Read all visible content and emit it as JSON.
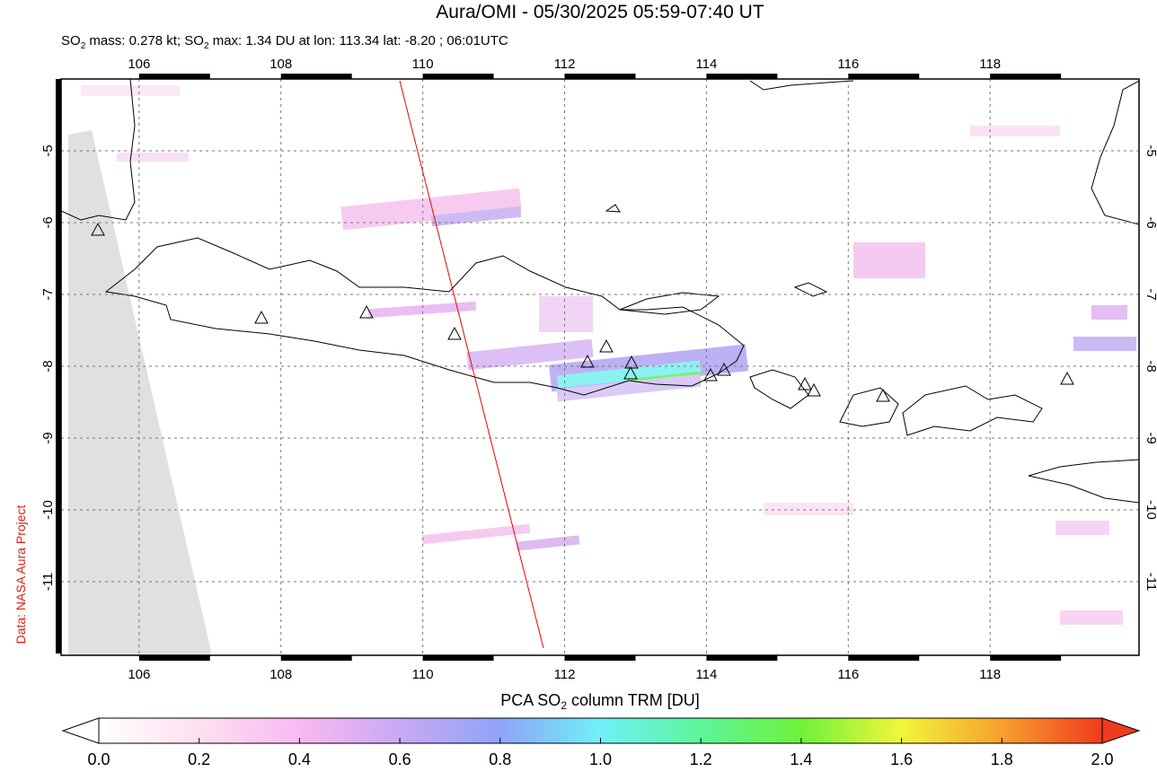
{
  "title": "Aura/OMI - 05/30/2025 05:59-07:40 UT",
  "subtitle": [
    "SO",
    "2",
    " mass: 0.278 kt; SO",
    "2",
    " max: 1.34 DU at lon: 113.34 lat: -8.20 ; 06:01UTC"
  ],
  "map": {
    "xlim": [
      104.9,
      120.1
    ],
    "ylim": [
      -12.025,
      -4
    ],
    "xticks": [
      106,
      108,
      110,
      112,
      114,
      116,
      118
    ],
    "yticks": [
      -5,
      -6,
      -7,
      -8,
      -9,
      -10,
      -11
    ],
    "grid": true
  },
  "colorbar": {
    "label": [
      "PCA SO",
      "2",
      " column TRM [DU]"
    ],
    "lim": [
      0,
      2
    ],
    "ticks": [
      {
        "value": 0,
        "label": "0.0"
      },
      {
        "value": 0.2,
        "label": "0.2"
      },
      {
        "value": 0.4,
        "label": "0.4"
      },
      {
        "value": 0.6,
        "label": "0.6"
      },
      {
        "value": 0.8,
        "label": "0.8"
      },
      {
        "value": 1,
        "label": "1.0"
      },
      {
        "value": 1.2,
        "label": "1.2"
      },
      {
        "value": 1.4,
        "label": "1.4"
      },
      {
        "value": 1.6,
        "label": "1.6"
      },
      {
        "value": 1.8,
        "label": "1.8"
      },
      {
        "value": 2,
        "label": "2.0"
      }
    ]
  },
  "credit": "Data: NASA Aura Project"
}
